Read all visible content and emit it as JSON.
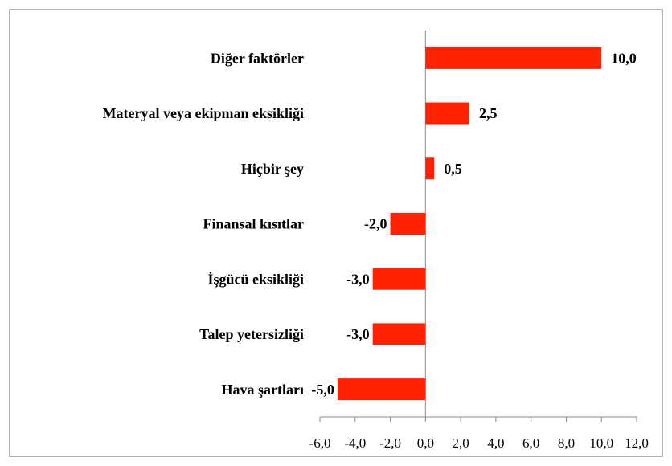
{
  "chart_data": {
    "type": "bar",
    "orientation": "horizontal",
    "categories": [
      "Diğer faktörler",
      "Materyal veya ekipman eksikliği",
      "Hiçbir şey",
      "Finansal kısıtlar",
      "İşgücü eksikliği",
      "Talep yetersizliği",
      "Hava şartları"
    ],
    "values": [
      10,
      2.5,
      0.5,
      -2,
      -3,
      -3,
      -5
    ],
    "value_labels": [
      "10,0",
      "2,5",
      "0,5",
      "-2,0",
      "-3,0",
      "-3,0",
      "-5,0"
    ],
    "color": "#ff2200",
    "xlim": [
      -6,
      12
    ],
    "xticks": [
      {
        "value": -6,
        "label": "-6,0"
      },
      {
        "value": -4,
        "label": "-4,0"
      },
      {
        "value": -2,
        "label": "-2,0"
      },
      {
        "value": 0,
        "label": "0,0"
      },
      {
        "value": 2,
        "label": "2,0"
      },
      {
        "value": 4,
        "label": "4,0"
      },
      {
        "value": 6,
        "label": "6,0"
      },
      {
        "value": 8,
        "label": "8,0"
      },
      {
        "value": 10,
        "label": "10,0"
      },
      {
        "value": 12,
        "label": "12,0"
      }
    ],
    "grid": false
  }
}
